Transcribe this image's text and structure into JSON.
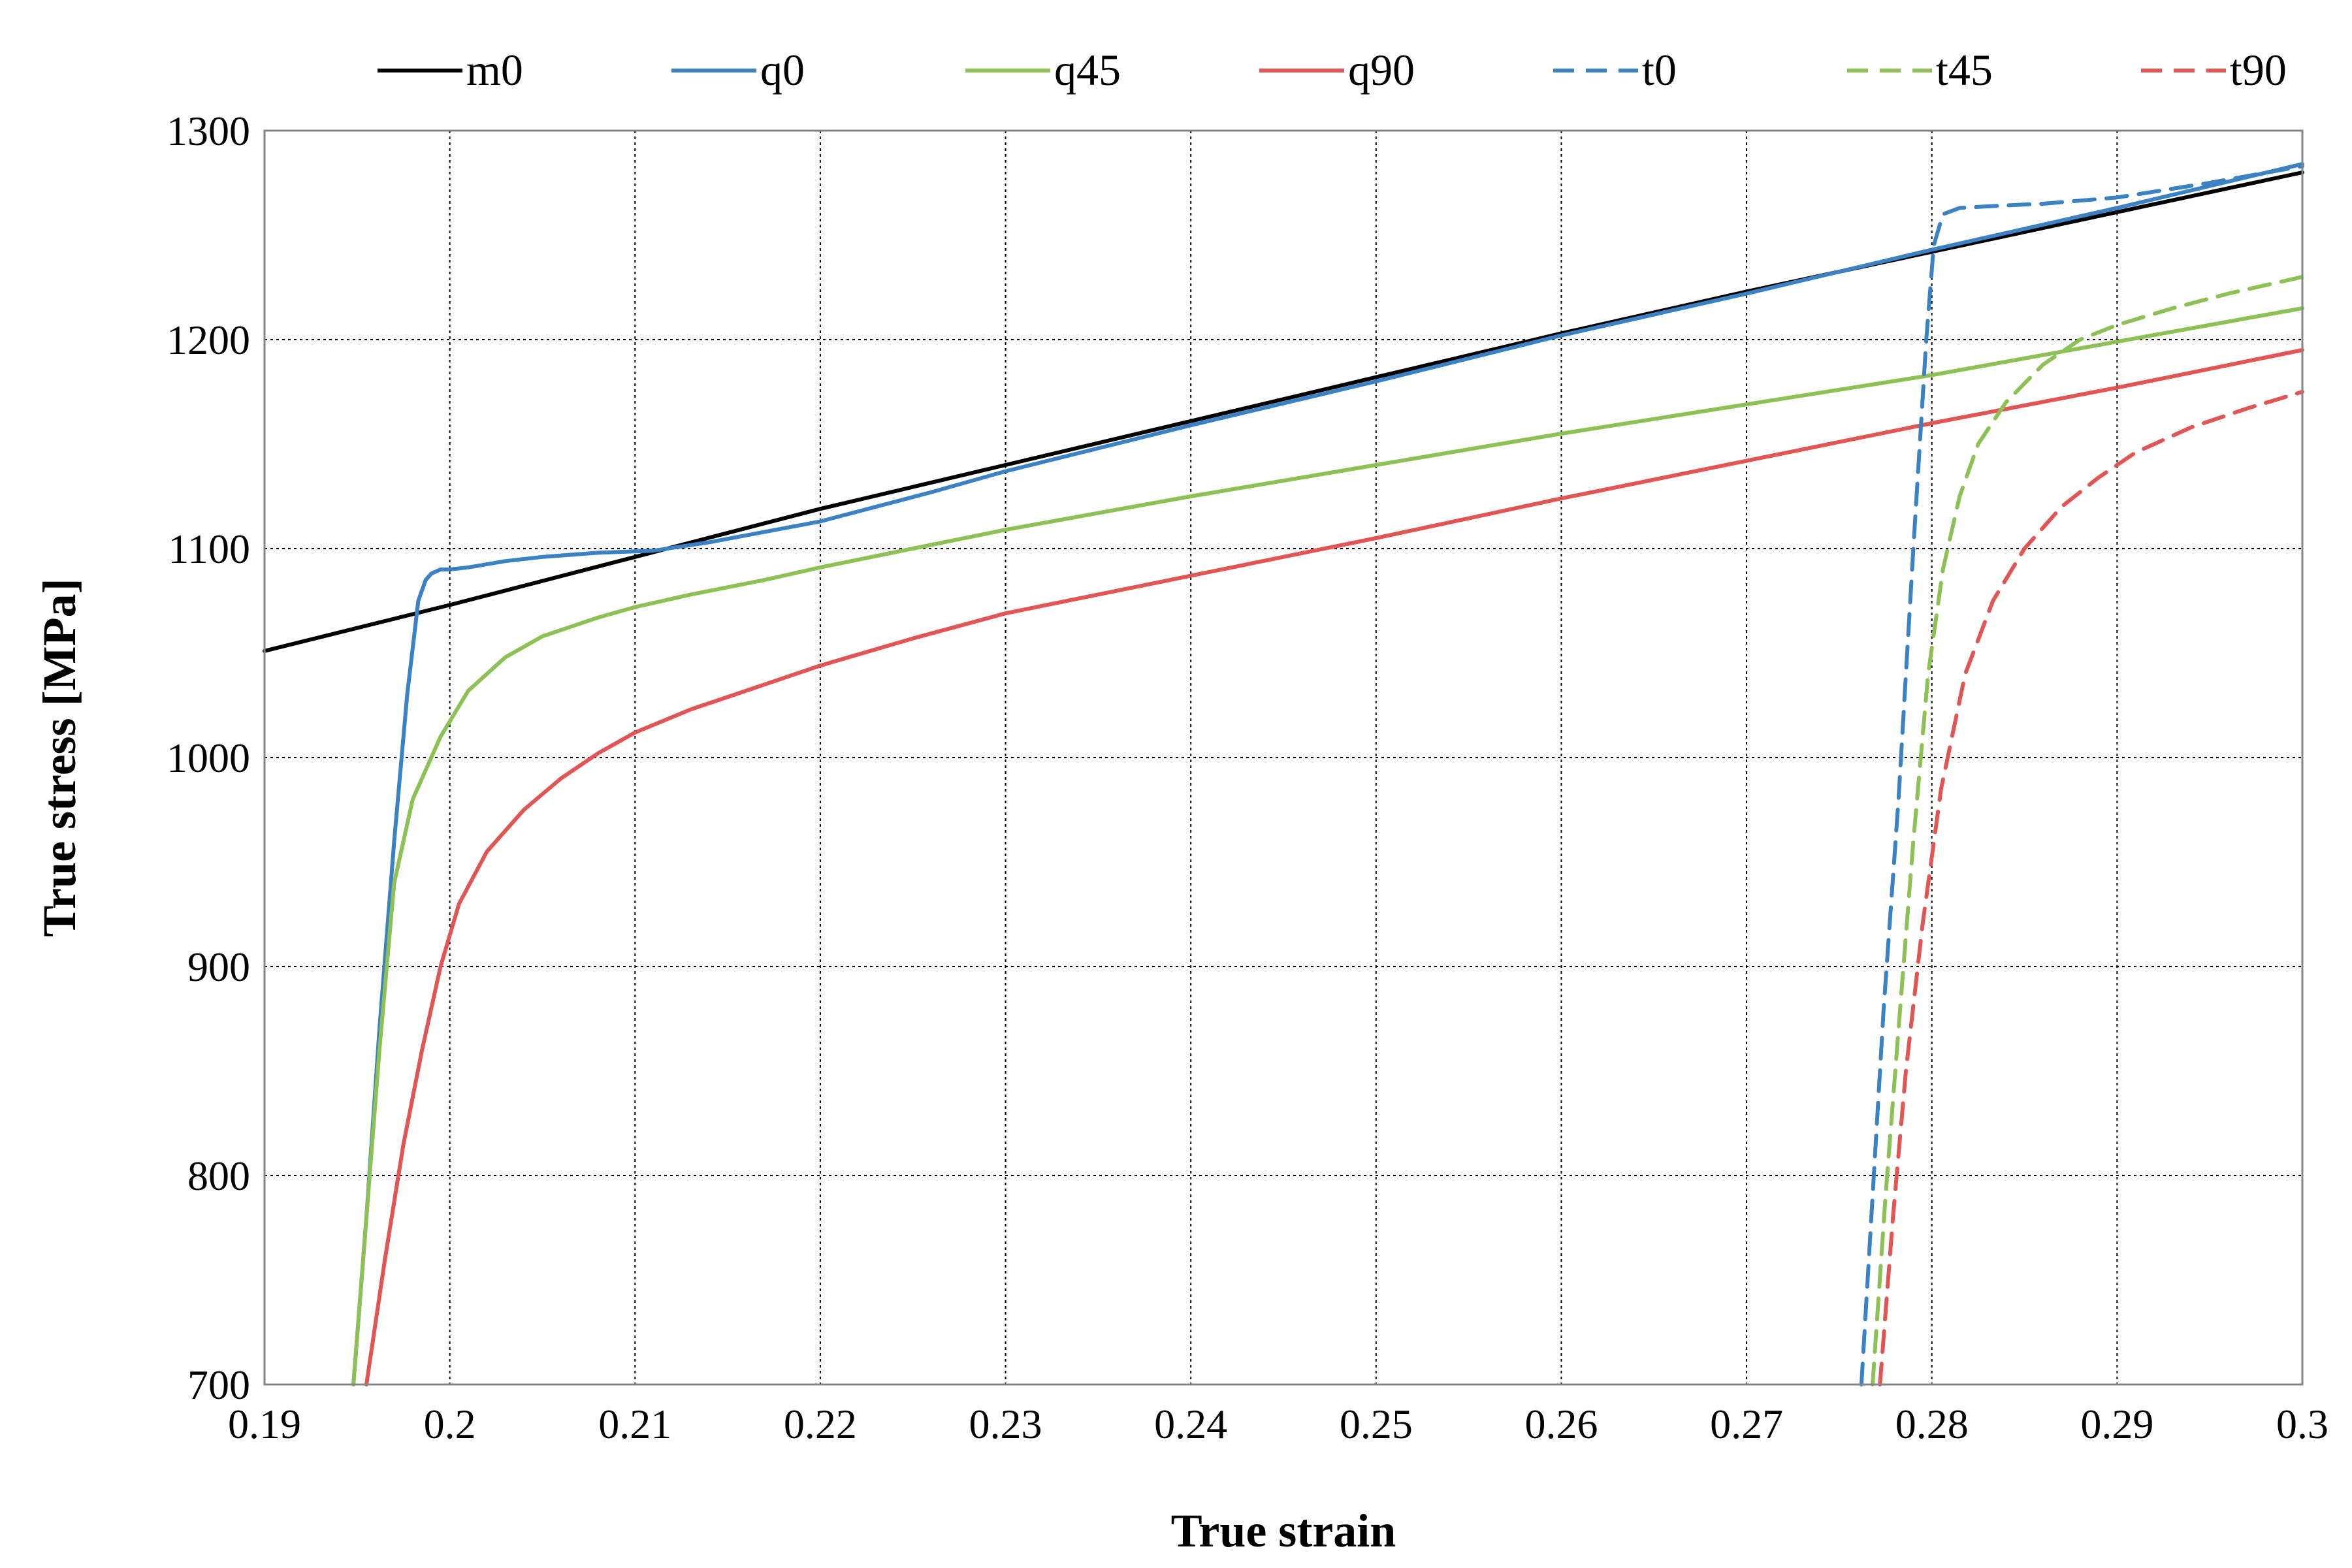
{
  "chart_data": {
    "type": "line",
    "xlabel": "True strain",
    "ylabel": "True stress [MPa]",
    "xlim": [
      0.19,
      0.3
    ],
    "ylim": [
      700,
      1300
    ],
    "xticks": [
      0.19,
      0.2,
      0.21,
      0.22,
      0.23,
      0.24,
      0.25,
      0.26,
      0.27,
      0.28,
      0.29,
      0.3
    ],
    "xtick_labels": [
      "0.19",
      "0.2",
      "0.21",
      "0.22",
      "0.23",
      "0.24",
      "0.25",
      "0.26",
      "0.27",
      "0.28",
      "0.29",
      "0.3"
    ],
    "yticks": [
      700,
      800,
      900,
      1000,
      1100,
      1200,
      1300
    ],
    "ytick_labels": [
      "700",
      "800",
      "900",
      "1000",
      "1100",
      "1200",
      "1300"
    ],
    "grid": true,
    "legend_position": "top",
    "series": [
      {
        "name": "m0",
        "color": "#000000",
        "dash": "solid",
        "x": [
          0.19,
          0.2,
          0.21,
          0.22,
          0.23,
          0.24,
          0.25,
          0.26,
          0.27,
          0.28,
          0.29,
          0.3
        ],
        "y": [
          1051,
          1073,
          1096,
          1119,
          1140,
          1161,
          1182,
          1203,
          1223,
          1242,
          1261,
          1280
        ]
      },
      {
        "name": "q0",
        "color": "#3b82c4",
        "dash": "solid",
        "x": [
          0.1948,
          0.1955,
          0.1962,
          0.197,
          0.1977,
          0.1983,
          0.1987,
          0.199,
          0.1995,
          0.2,
          0.201,
          0.203,
          0.205,
          0.208,
          0.211,
          0.214,
          0.217,
          0.22,
          0.223,
          0.226,
          0.23,
          0.24,
          0.25,
          0.26,
          0.27,
          0.28,
          0.29,
          0.3
        ],
        "y": [
          700,
          780,
          870,
          960,
          1030,
          1075,
          1085,
          1088,
          1090,
          1090,
          1091,
          1094,
          1096,
          1098,
          1099,
          1103,
          1108,
          1113,
          1120,
          1127,
          1137,
          1159,
          1180,
          1202,
          1222,
          1243,
          1263,
          1284
        ]
      },
      {
        "name": "q45",
        "color": "#8ec155",
        "dash": "solid",
        "x": [
          0.1948,
          0.1955,
          0.1962,
          0.197,
          0.198,
          0.1995,
          0.201,
          0.203,
          0.205,
          0.208,
          0.21,
          0.213,
          0.217,
          0.22,
          0.225,
          0.23,
          0.24,
          0.25,
          0.26,
          0.27,
          0.28,
          0.29,
          0.3
        ],
        "y": [
          700,
          780,
          860,
          940,
          980,
          1010,
          1032,
          1048,
          1058,
          1067,
          1072,
          1078,
          1085,
          1091,
          1100,
          1109,
          1125,
          1140,
          1155,
          1169,
          1183,
          1199,
          1215
        ]
      },
      {
        "name": "q90",
        "color": "#e15554",
        "dash": "solid",
        "x": [
          0.1955,
          0.1965,
          0.1975,
          0.1985,
          0.1995,
          0.2005,
          0.202,
          0.204,
          0.206,
          0.208,
          0.21,
          0.213,
          0.216,
          0.22,
          0.225,
          0.23,
          0.24,
          0.25,
          0.26,
          0.27,
          0.28,
          0.29,
          0.3
        ],
        "y": [
          700,
          760,
          815,
          860,
          900,
          930,
          955,
          975,
          990,
          1002,
          1012,
          1023,
          1032,
          1044,
          1057,
          1069,
          1087,
          1105,
          1124,
          1142,
          1160,
          1177,
          1195
        ]
      },
      {
        "name": "t0",
        "color": "#3b82c4",
        "dash": "dashed",
        "x": [
          0.2762,
          0.2768,
          0.2774,
          0.2782,
          0.279,
          0.2797,
          0.2801,
          0.2806,
          0.2815,
          0.2835,
          0.286,
          0.29,
          0.295,
          0.3
        ],
        "y": [
          700,
          790,
          880,
          980,
          1100,
          1200,
          1245,
          1260,
          1263,
          1264,
          1265,
          1268,
          1275,
          1283
        ]
      },
      {
        "name": "t45",
        "color": "#8ec155",
        "dash": "dashed",
        "x": [
          0.2768,
          0.2775,
          0.2782,
          0.279,
          0.2798,
          0.2806,
          0.2815,
          0.2825,
          0.284,
          0.286,
          0.288,
          0.29,
          0.293,
          0.296,
          0.3
        ],
        "y": [
          700,
          790,
          870,
          960,
          1040,
          1090,
          1125,
          1150,
          1170,
          1188,
          1200,
          1207,
          1215,
          1222,
          1230
        ]
      },
      {
        "name": "t90",
        "color": "#e15554",
        "dash": "dashed",
        "x": [
          0.2772,
          0.2779,
          0.2786,
          0.2795,
          0.2805,
          0.2818,
          0.2833,
          0.285,
          0.287,
          0.289,
          0.291,
          0.294,
          0.297,
          0.3
        ],
        "y": [
          700,
          780,
          850,
          920,
          985,
          1040,
          1075,
          1100,
          1120,
          1134,
          1146,
          1158,
          1167,
          1175
        ]
      }
    ]
  }
}
